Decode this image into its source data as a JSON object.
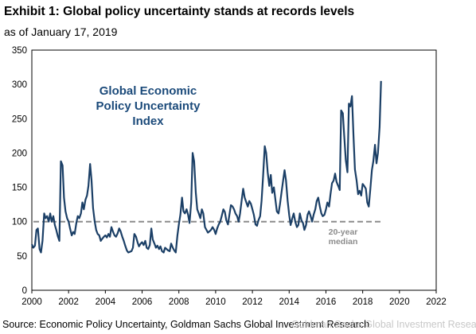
{
  "header": {
    "title": "Exhibit 1: Global policy uncertainty stands at records levels",
    "subtitle": "as of January 17, 2019"
  },
  "footer": {
    "source": "Source: Economic Policy Uncertainty, Goldman Sachs Global Investment Research",
    "watermark": "Goldman Sachs Global Investment Research"
  },
  "chart_data": {
    "type": "line",
    "title": "",
    "xlabel": "",
    "ylabel": "",
    "xlim": [
      2000,
      2022
    ],
    "ylim": [
      0,
      350
    ],
    "x_ticks": [
      2000,
      2002,
      2004,
      2006,
      2008,
      2010,
      2012,
      2014,
      2016,
      2018,
      2020,
      2022
    ],
    "x_tick_labels": [
      "2000",
      "2002",
      "2004",
      "2006",
      "2008",
      "2010",
      "2012",
      "2014",
      "2016",
      "2018",
      "2020",
      "2022"
    ],
    "y_ticks": [
      0,
      50,
      100,
      150,
      200,
      250,
      300,
      350
    ],
    "y_tick_labels": [
      "0",
      "50",
      "100",
      "150",
      "200",
      "250",
      "300",
      "350"
    ],
    "grid": false,
    "line_color": "#1b3f66",
    "annotation": {
      "lines": [
        "Global Economic",
        "Policy Uncertainty",
        "Index"
      ],
      "color": "#1b4a7a"
    },
    "reference_line": {
      "value": 100,
      "style": "dashed",
      "color": "#8c8c8c",
      "label_lines": [
        "20-year",
        "median"
      ]
    },
    "series": [
      {
        "values": [
          [
            2000.0,
            67
          ],
          [
            2000.08,
            62
          ],
          [
            2000.17,
            65
          ],
          [
            2000.25,
            88
          ],
          [
            2000.33,
            90
          ],
          [
            2000.42,
            60
          ],
          [
            2000.5,
            55
          ],
          [
            2000.58,
            72
          ],
          [
            2000.67,
            112
          ],
          [
            2000.75,
            105
          ],
          [
            2000.83,
            108
          ],
          [
            2000.92,
            100
          ],
          [
            2001.0,
            112
          ],
          [
            2001.08,
            100
          ],
          [
            2001.17,
            108
          ],
          [
            2001.25,
            95
          ],
          [
            2001.33,
            88
          ],
          [
            2001.42,
            78
          ],
          [
            2001.5,
            72
          ],
          [
            2001.58,
            188
          ],
          [
            2001.67,
            182
          ],
          [
            2001.75,
            135
          ],
          [
            2001.83,
            115
          ],
          [
            2001.92,
            105
          ],
          [
            2002.0,
            100
          ],
          [
            2002.08,
            90
          ],
          [
            2002.17,
            80
          ],
          [
            2002.25,
            85
          ],
          [
            2002.33,
            82
          ],
          [
            2002.42,
            98
          ],
          [
            2002.5,
            108
          ],
          [
            2002.58,
            105
          ],
          [
            2002.67,
            112
          ],
          [
            2002.75,
            128
          ],
          [
            2002.83,
            118
          ],
          [
            2002.92,
            132
          ],
          [
            2003.0,
            138
          ],
          [
            2003.08,
            152
          ],
          [
            2003.17,
            184
          ],
          [
            2003.25,
            160
          ],
          [
            2003.33,
            120
          ],
          [
            2003.42,
            100
          ],
          [
            2003.5,
            88
          ],
          [
            2003.58,
            82
          ],
          [
            2003.67,
            80
          ],
          [
            2003.75,
            72
          ],
          [
            2003.83,
            75
          ],
          [
            2003.92,
            78
          ],
          [
            2004.0,
            80
          ],
          [
            2004.08,
            77
          ],
          [
            2004.17,
            82
          ],
          [
            2004.25,
            78
          ],
          [
            2004.33,
            92
          ],
          [
            2004.42,
            85
          ],
          [
            2004.5,
            80
          ],
          [
            2004.58,
            78
          ],
          [
            2004.67,
            83
          ],
          [
            2004.75,
            90
          ],
          [
            2004.83,
            86
          ],
          [
            2004.92,
            78
          ],
          [
            2005.0,
            72
          ],
          [
            2005.08,
            65
          ],
          [
            2005.17,
            58
          ],
          [
            2005.25,
            55
          ],
          [
            2005.33,
            56
          ],
          [
            2005.42,
            57
          ],
          [
            2005.5,
            62
          ],
          [
            2005.58,
            82
          ],
          [
            2005.67,
            78
          ],
          [
            2005.75,
            70
          ],
          [
            2005.83,
            64
          ],
          [
            2005.92,
            68
          ],
          [
            2006.0,
            70
          ],
          [
            2006.08,
            66
          ],
          [
            2006.17,
            72
          ],
          [
            2006.25,
            62
          ],
          [
            2006.33,
            60
          ],
          [
            2006.42,
            66
          ],
          [
            2006.5,
            90
          ],
          [
            2006.58,
            74
          ],
          [
            2006.67,
            68
          ],
          [
            2006.75,
            62
          ],
          [
            2006.83,
            65
          ],
          [
            2006.92,
            60
          ],
          [
            2007.0,
            64
          ],
          [
            2007.08,
            57
          ],
          [
            2007.17,
            55
          ],
          [
            2007.25,
            62
          ],
          [
            2007.33,
            60
          ],
          [
            2007.42,
            58
          ],
          [
            2007.5,
            57
          ],
          [
            2007.58,
            68
          ],
          [
            2007.67,
            62
          ],
          [
            2007.75,
            58
          ],
          [
            2007.83,
            55
          ],
          [
            2007.92,
            80
          ],
          [
            2008.0,
            96
          ],
          [
            2008.08,
            110
          ],
          [
            2008.17,
            135
          ],
          [
            2008.25,
            115
          ],
          [
            2008.33,
            112
          ],
          [
            2008.42,
            118
          ],
          [
            2008.5,
            110
          ],
          [
            2008.58,
            98
          ],
          [
            2008.67,
            128
          ],
          [
            2008.75,
            200
          ],
          [
            2008.83,
            188
          ],
          [
            2008.92,
            142
          ],
          [
            2009.0,
            118
          ],
          [
            2009.08,
            112
          ],
          [
            2009.17,
            105
          ],
          [
            2009.25,
            118
          ],
          [
            2009.33,
            112
          ],
          [
            2009.42,
            92
          ],
          [
            2009.5,
            88
          ],
          [
            2009.58,
            84
          ],
          [
            2009.67,
            86
          ],
          [
            2009.75,
            88
          ],
          [
            2009.83,
            92
          ],
          [
            2009.92,
            88
          ],
          [
            2010.0,
            82
          ],
          [
            2010.08,
            90
          ],
          [
            2010.17,
            96
          ],
          [
            2010.25,
            100
          ],
          [
            2010.33,
            108
          ],
          [
            2010.42,
            118
          ],
          [
            2010.5,
            114
          ],
          [
            2010.58,
            102
          ],
          [
            2010.67,
            96
          ],
          [
            2010.75,
            110
          ],
          [
            2010.83,
            124
          ],
          [
            2010.92,
            122
          ],
          [
            2011.0,
            118
          ],
          [
            2011.08,
            112
          ],
          [
            2011.17,
            108
          ],
          [
            2011.25,
            100
          ],
          [
            2011.33,
            112
          ],
          [
            2011.42,
            132
          ],
          [
            2011.5,
            148
          ],
          [
            2011.58,
            135
          ],
          [
            2011.67,
            128
          ],
          [
            2011.75,
            122
          ],
          [
            2011.83,
            130
          ],
          [
            2011.92,
            126
          ],
          [
            2012.0,
            118
          ],
          [
            2012.08,
            110
          ],
          [
            2012.17,
            96
          ],
          [
            2012.25,
            94
          ],
          [
            2012.33,
            102
          ],
          [
            2012.42,
            108
          ],
          [
            2012.5,
            130
          ],
          [
            2012.58,
            166
          ],
          [
            2012.67,
            210
          ],
          [
            2012.75,
            200
          ],
          [
            2012.83,
            172
          ],
          [
            2012.92,
            152
          ],
          [
            2013.0,
            168
          ],
          [
            2013.08,
            142
          ],
          [
            2013.17,
            150
          ],
          [
            2013.25,
            132
          ],
          [
            2013.33,
            115
          ],
          [
            2013.42,
            112
          ],
          [
            2013.5,
            125
          ],
          [
            2013.58,
            142
          ],
          [
            2013.67,
            160
          ],
          [
            2013.75,
            175
          ],
          [
            2013.83,
            160
          ],
          [
            2013.92,
            130
          ],
          [
            2014.0,
            110
          ],
          [
            2014.08,
            95
          ],
          [
            2014.17,
            105
          ],
          [
            2014.25,
            112
          ],
          [
            2014.33,
            100
          ],
          [
            2014.42,
            92
          ],
          [
            2014.5,
            95
          ],
          [
            2014.58,
            112
          ],
          [
            2014.67,
            102
          ],
          [
            2014.75,
            98
          ],
          [
            2014.83,
            88
          ],
          [
            2014.92,
            95
          ],
          [
            2015.0,
            110
          ],
          [
            2015.08,
            115
          ],
          [
            2015.17,
            108
          ],
          [
            2015.25,
            100
          ],
          [
            2015.33,
            110
          ],
          [
            2015.42,
            118
          ],
          [
            2015.5,
            130
          ],
          [
            2015.58,
            135
          ],
          [
            2015.67,
            122
          ],
          [
            2015.75,
            112
          ],
          [
            2015.83,
            108
          ],
          [
            2015.92,
            110
          ],
          [
            2016.0,
            118
          ],
          [
            2016.08,
            128
          ],
          [
            2016.17,
            122
          ],
          [
            2016.25,
            140
          ],
          [
            2016.33,
            156
          ],
          [
            2016.42,
            160
          ],
          [
            2016.5,
            170
          ],
          [
            2016.58,
            158
          ],
          [
            2016.67,
            152
          ],
          [
            2016.75,
            146
          ],
          [
            2016.83,
            262
          ],
          [
            2016.92,
            258
          ],
          [
            2017.0,
            224
          ],
          [
            2017.08,
            190
          ],
          [
            2017.17,
            172
          ],
          [
            2017.25,
            272
          ],
          [
            2017.33,
            268
          ],
          [
            2017.42,
            283
          ],
          [
            2017.5,
            225
          ],
          [
            2017.58,
            176
          ],
          [
            2017.67,
            160
          ],
          [
            2017.75,
            140
          ],
          [
            2017.83,
            145
          ],
          [
            2017.92,
            138
          ],
          [
            2018.0,
            155
          ],
          [
            2018.08,
            152
          ],
          [
            2018.17,
            148
          ],
          [
            2018.25,
            128
          ],
          [
            2018.33,
            122
          ],
          [
            2018.42,
            148
          ],
          [
            2018.5,
            175
          ],
          [
            2018.58,
            188
          ],
          [
            2018.67,
            212
          ],
          [
            2018.75,
            185
          ],
          [
            2018.83,
            200
          ],
          [
            2018.92,
            238
          ],
          [
            2019.0,
            305
          ]
        ]
      }
    ]
  }
}
